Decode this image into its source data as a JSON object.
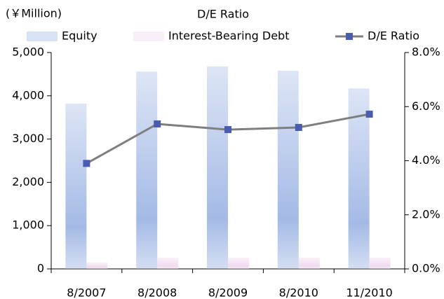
{
  "chart_data": {
    "type": "bar_line",
    "title": "D/E Ratio",
    "y_label": "(￥Million)",
    "categories": [
      "8/2007",
      "8/2008",
      "8/2009",
      "8/2010",
      "11/2010"
    ],
    "series": [
      {
        "name": "Equity",
        "color": "#9fb6e4",
        "values": [
          3820,
          4560,
          4680,
          4580,
          4170
        ]
      },
      {
        "name": "Interest-Bearing Debt",
        "color": "#f0d8ee",
        "values": [
          150,
          260,
          260,
          260,
          260
        ]
      },
      {
        "name": "D/E Ratio",
        "color": "#7f7f7f",
        "marker_color": "#4a5cb0",
        "axis": "y2",
        "values": [
          3.9,
          5.36,
          5.15,
          5.23,
          5.72
        ]
      }
    ],
    "ylim": [
      0,
      5000
    ],
    "yticks": [
      0,
      {
        "value": 1000,
        "label": "1,000"
      },
      {
        "value": 2000,
        "label": "2,000"
      },
      {
        "value": 3000,
        "label": "3,000"
      },
      {
        "value": 4000,
        "label": "4,000"
      },
      {
        "value": 5000,
        "label": "5,000"
      }
    ],
    "y2lim": [
      0,
      8
    ],
    "y2ticks": [
      {
        "value": 0,
        "label": "0.0%"
      },
      {
        "value": 2,
        "label": "2.0%"
      },
      {
        "value": 4,
        "label": "4.0%"
      },
      {
        "value": 6,
        "label": "6.0%"
      },
      {
        "value": 8,
        "label": "8.0%"
      }
    ]
  }
}
